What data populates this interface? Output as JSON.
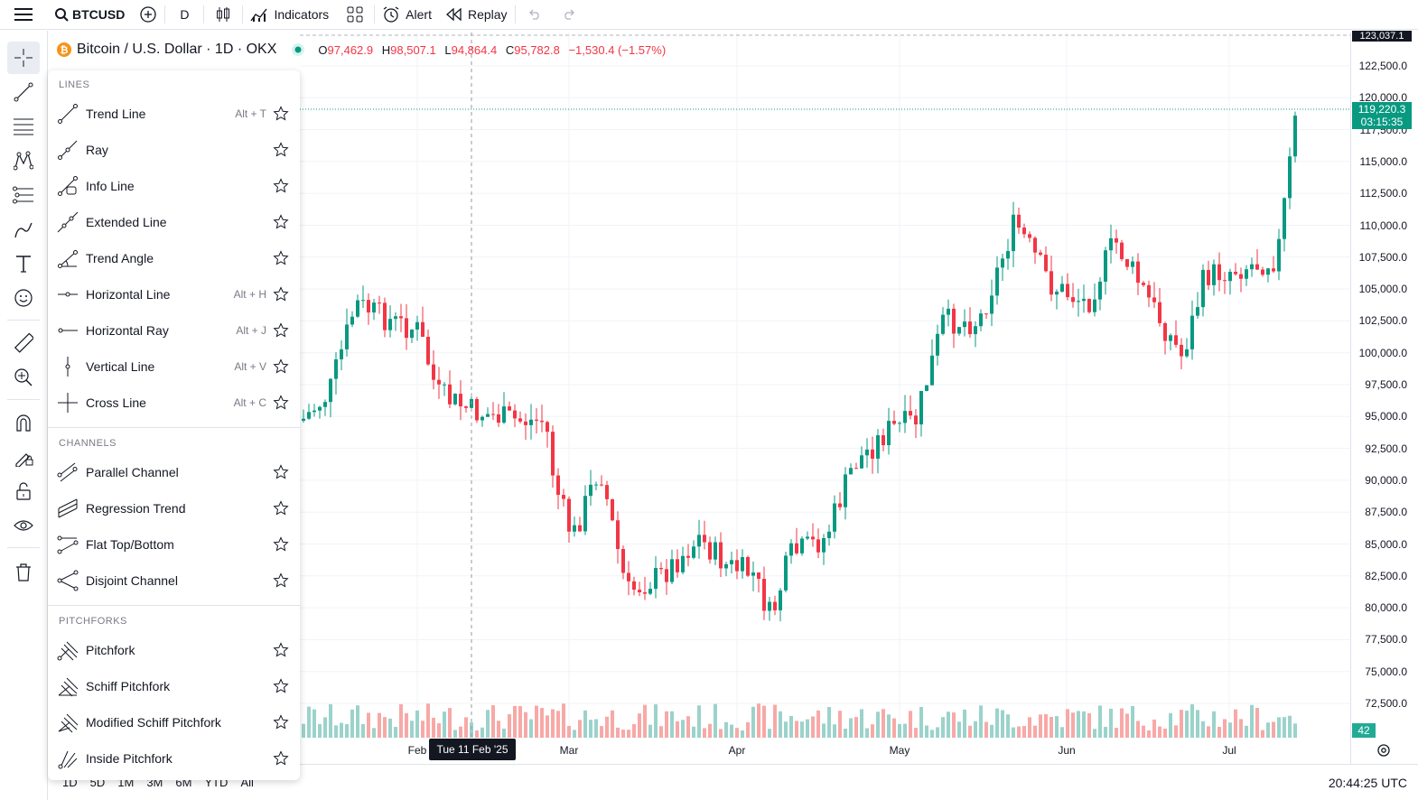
{
  "topbar": {
    "symbol": "BTCUSD",
    "interval": "D",
    "indicators_label": "Indicators",
    "alert_label": "Alert",
    "replay_label": "Replay"
  },
  "legend": {
    "title": "Bitcoin / U.S. Dollar · 1D · OKX",
    "o_label": "O",
    "o_value": "97,462.9",
    "h_label": "H",
    "h_value": "98,507.1",
    "l_label": "L",
    "l_value": "94,864.4",
    "c_label": "C",
    "c_value": "95,782.8",
    "change": "−1,530.4 (−1.57%)"
  },
  "price_axis": {
    "labels": [
      "122,500.0",
      "120,000.0",
      "117,500.0",
      "115,000.0",
      "112,500.0",
      "110,000.0",
      "107,500.0",
      "105,000.0",
      "102,500.0",
      "100,000.0",
      "97,500.0",
      "95,000.0",
      "92,500.0",
      "90,000.0",
      "87,500.0",
      "85,000.0",
      "82,500.0",
      "80,000.0",
      "77,500.0",
      "75,000.0",
      "72,500.0"
    ],
    "top_tag": "123,037.1",
    "current_price": "119,220.3",
    "countdown": "03:15:35",
    "volume": "42"
  },
  "time_axis": {
    "labels": [
      "Feb",
      "Mar",
      "Apr",
      "May",
      "Jun",
      "Jul"
    ],
    "crosshair_date": "Tue 11 Feb '25"
  },
  "bottombar": {
    "ranges": [
      "1D",
      "5D",
      "1M",
      "3M",
      "6M",
      "YTD",
      "All"
    ],
    "clock": "20:44:25 UTC"
  },
  "drawing_menu": {
    "lines_title": "LINES",
    "lines": [
      {
        "label": "Trend Line",
        "shortcut": "Alt + T"
      },
      {
        "label": "Ray",
        "shortcut": ""
      },
      {
        "label": "Info Line",
        "shortcut": ""
      },
      {
        "label": "Extended Line",
        "shortcut": ""
      },
      {
        "label": "Trend Angle",
        "shortcut": ""
      },
      {
        "label": "Horizontal Line",
        "shortcut": "Alt + H"
      },
      {
        "label": "Horizontal Ray",
        "shortcut": "Alt + J"
      },
      {
        "label": "Vertical Line",
        "shortcut": "Alt + V"
      },
      {
        "label": "Cross Line",
        "shortcut": "Alt + C"
      }
    ],
    "channels_title": "CHANNELS",
    "channels": [
      {
        "label": "Parallel Channel"
      },
      {
        "label": "Regression Trend"
      },
      {
        "label": "Flat Top/Bottom"
      },
      {
        "label": "Disjoint Channel"
      }
    ],
    "pitchforks_title": "PITCHFORKS",
    "pitchforks": [
      {
        "label": "Pitchfork"
      },
      {
        "label": "Schiff Pitchfork"
      },
      {
        "label": "Modified Schiff Pitchfork"
      },
      {
        "label": "Inside Pitchfork"
      }
    ]
  },
  "colors": {
    "up": "#089981",
    "down": "#f23645",
    "up_volume": "#9bd3cb",
    "down_volume": "#f7a9a7"
  }
}
